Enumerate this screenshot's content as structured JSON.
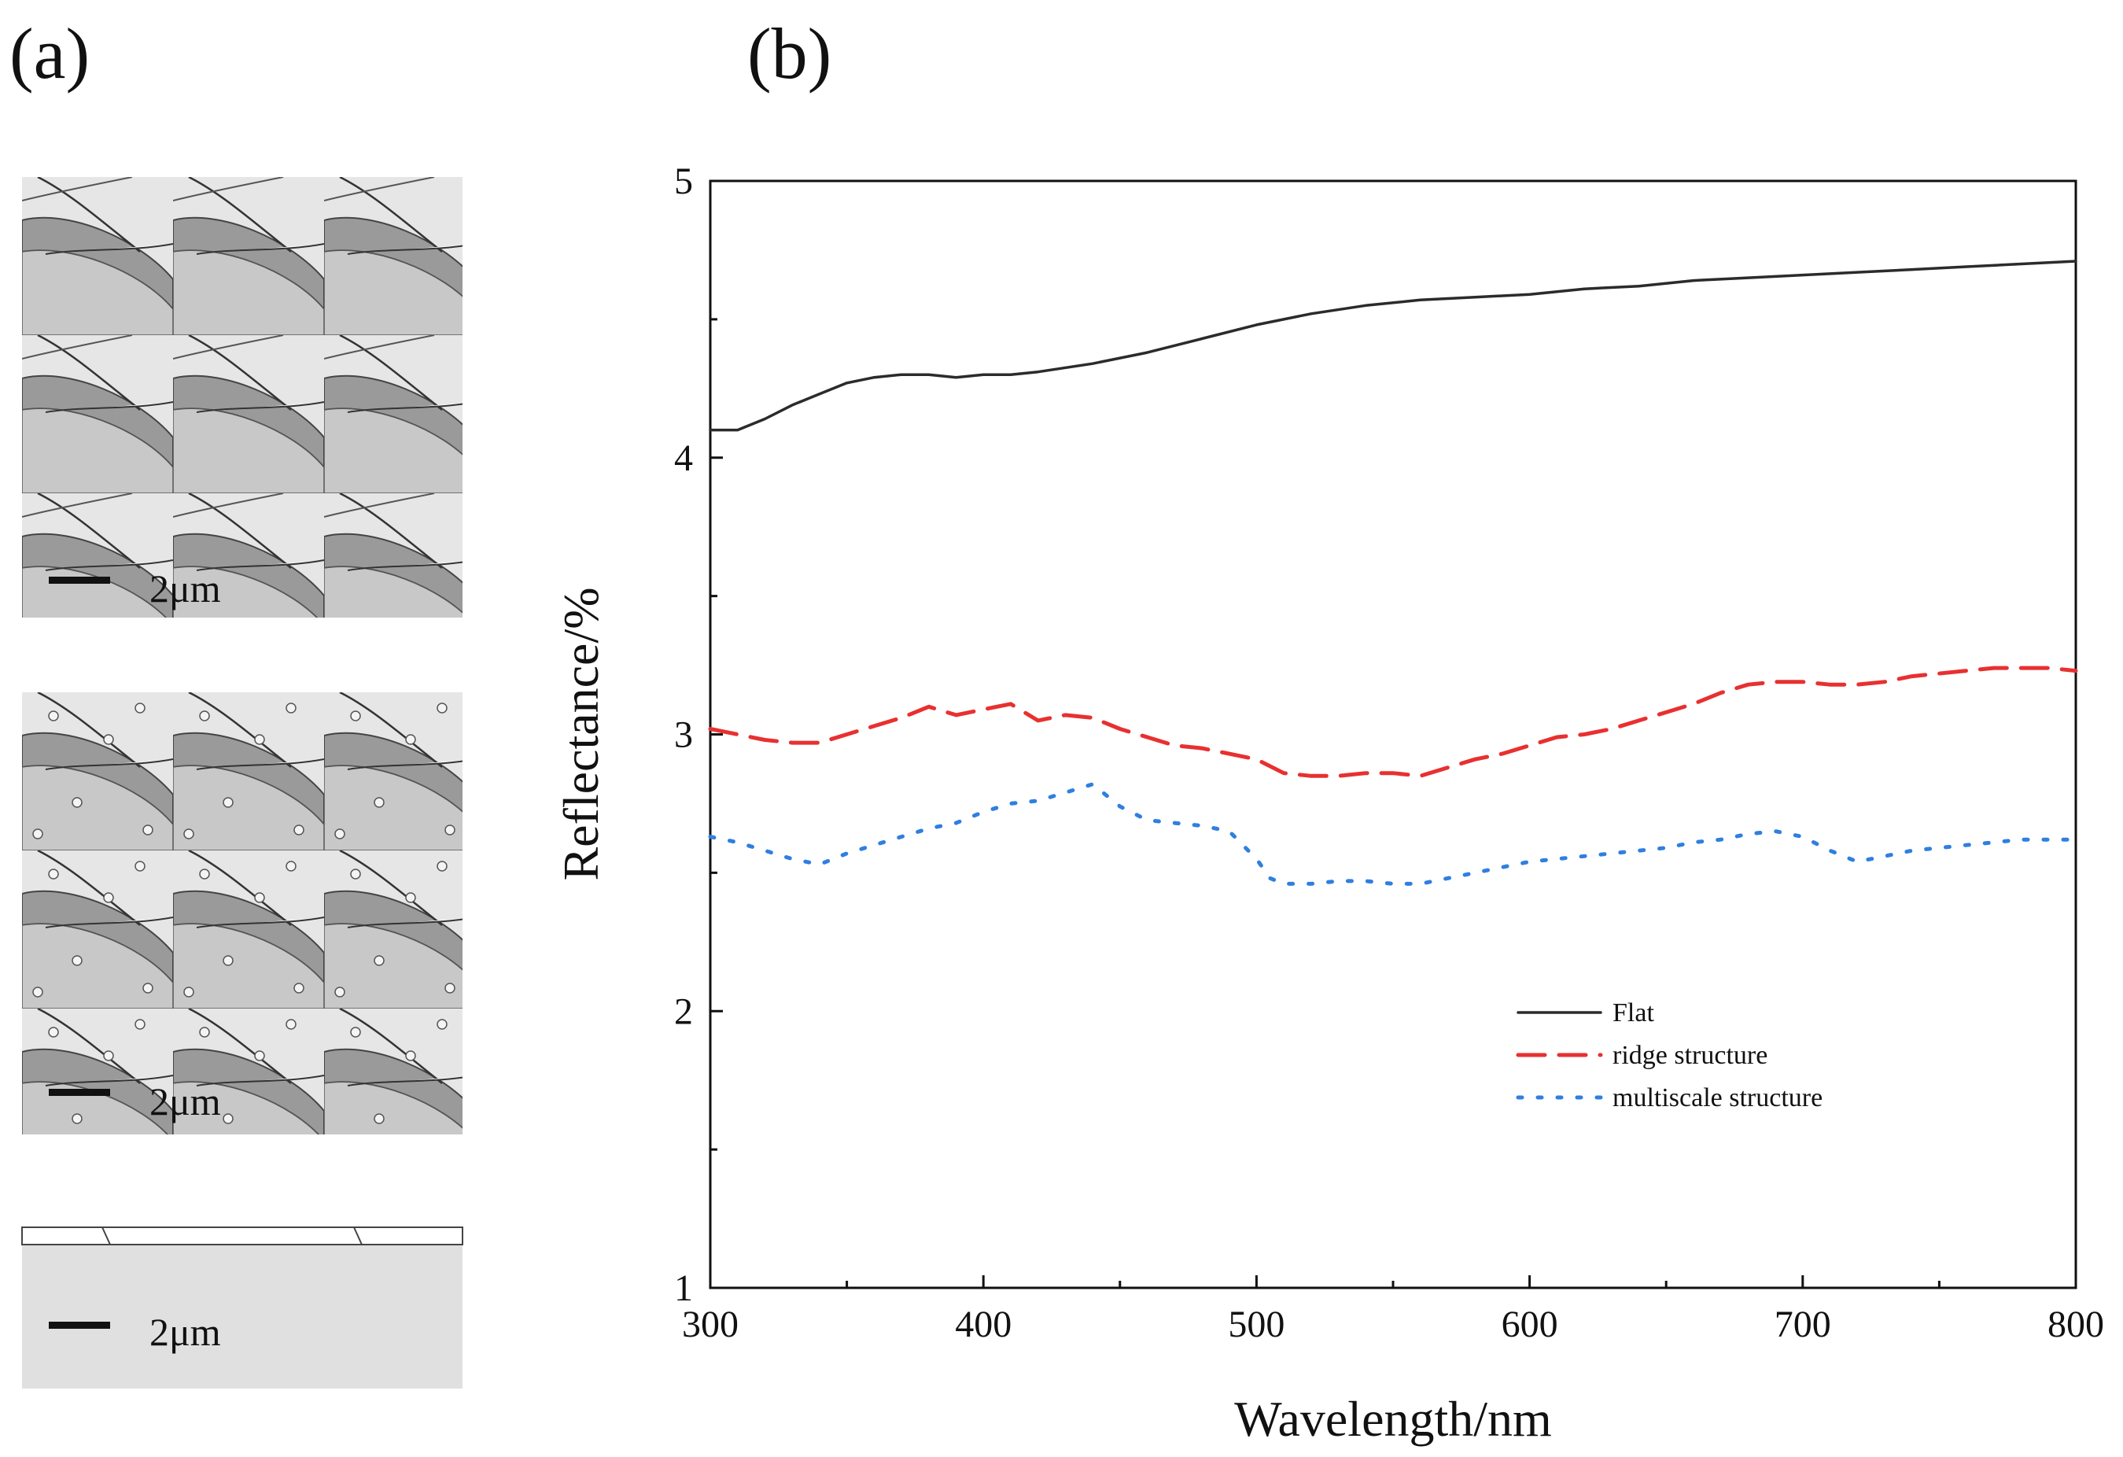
{
  "panels": {
    "a_label": "(a)",
    "b_label": "(b)"
  },
  "scale_bars": [
    {
      "text": "2μm"
    },
    {
      "text": "2μm"
    },
    {
      "text": "2μm"
    }
  ],
  "chart_data": {
    "type": "line",
    "xlabel": "Wavelength/nm",
    "ylabel": "Reflectance/%",
    "xlim": [
      300,
      800
    ],
    "ylim": [
      1,
      5
    ],
    "xticks": [
      300,
      400,
      500,
      600,
      700,
      800
    ],
    "yticks": [
      1,
      2,
      3,
      4,
      5
    ],
    "legend_position": "lower-right",
    "series": [
      {
        "name": "Flat",
        "color": "#2b2b2b",
        "style": "solid",
        "x": [
          300,
          310,
          320,
          330,
          340,
          350,
          360,
          370,
          380,
          390,
          400,
          410,
          420,
          440,
          460,
          480,
          500,
          520,
          540,
          560,
          580,
          600,
          620,
          640,
          660,
          680,
          700,
          720,
          740,
          760,
          780,
          800
        ],
        "y": [
          4.1,
          4.1,
          4.14,
          4.19,
          4.23,
          4.27,
          4.29,
          4.3,
          4.3,
          4.29,
          4.3,
          4.3,
          4.31,
          4.34,
          4.38,
          4.43,
          4.48,
          4.52,
          4.55,
          4.57,
          4.58,
          4.59,
          4.61,
          4.62,
          4.64,
          4.65,
          4.66,
          4.67,
          4.68,
          4.69,
          4.7,
          4.71
        ]
      },
      {
        "name": "ridge structure",
        "color": "#e83030",
        "style": "dashed",
        "x": [
          300,
          310,
          320,
          330,
          340,
          350,
          360,
          370,
          380,
          390,
          400,
          410,
          420,
          430,
          440,
          450,
          460,
          470,
          480,
          490,
          500,
          510,
          520,
          530,
          540,
          550,
          560,
          570,
          580,
          590,
          600,
          610,
          620,
          630,
          640,
          650,
          660,
          670,
          680,
          690,
          700,
          710,
          720,
          730,
          740,
          750,
          760,
          770,
          780,
          790,
          800
        ],
        "y": [
          3.02,
          3.0,
          2.98,
          2.97,
          2.97,
          3.0,
          3.03,
          3.06,
          3.1,
          3.07,
          3.09,
          3.11,
          3.05,
          3.07,
          3.06,
          3.02,
          2.99,
          2.96,
          2.95,
          2.93,
          2.91,
          2.86,
          2.85,
          2.85,
          2.86,
          2.86,
          2.85,
          2.88,
          2.91,
          2.93,
          2.96,
          2.99,
          3.0,
          3.02,
          3.05,
          3.08,
          3.11,
          3.15,
          3.18,
          3.19,
          3.19,
          3.18,
          3.18,
          3.19,
          3.21,
          3.22,
          3.23,
          3.24,
          3.24,
          3.24,
          3.23
        ]
      },
      {
        "name": "multiscale structure",
        "color": "#2f7fe0",
        "style": "dotted",
        "x": [
          300,
          310,
          320,
          330,
          340,
          350,
          360,
          370,
          380,
          390,
          400,
          410,
          420,
          430,
          440,
          450,
          460,
          470,
          480,
          490,
          500,
          505,
          510,
          520,
          530,
          540,
          550,
          560,
          570,
          580,
          590,
          600,
          610,
          620,
          630,
          640,
          650,
          660,
          670,
          680,
          690,
          700,
          710,
          720,
          730,
          740,
          750,
          760,
          770,
          780,
          790,
          800
        ],
        "y": [
          2.63,
          2.61,
          2.58,
          2.55,
          2.53,
          2.57,
          2.6,
          2.63,
          2.66,
          2.68,
          2.72,
          2.75,
          2.76,
          2.79,
          2.82,
          2.74,
          2.69,
          2.68,
          2.67,
          2.65,
          2.55,
          2.48,
          2.46,
          2.46,
          2.47,
          2.47,
          2.46,
          2.46,
          2.48,
          2.5,
          2.52,
          2.54,
          2.55,
          2.56,
          2.57,
          2.58,
          2.59,
          2.61,
          2.62,
          2.64,
          2.65,
          2.63,
          2.58,
          2.54,
          2.56,
          2.58,
          2.59,
          2.6,
          2.61,
          2.62,
          2.62,
          2.62
        ]
      }
    ]
  }
}
